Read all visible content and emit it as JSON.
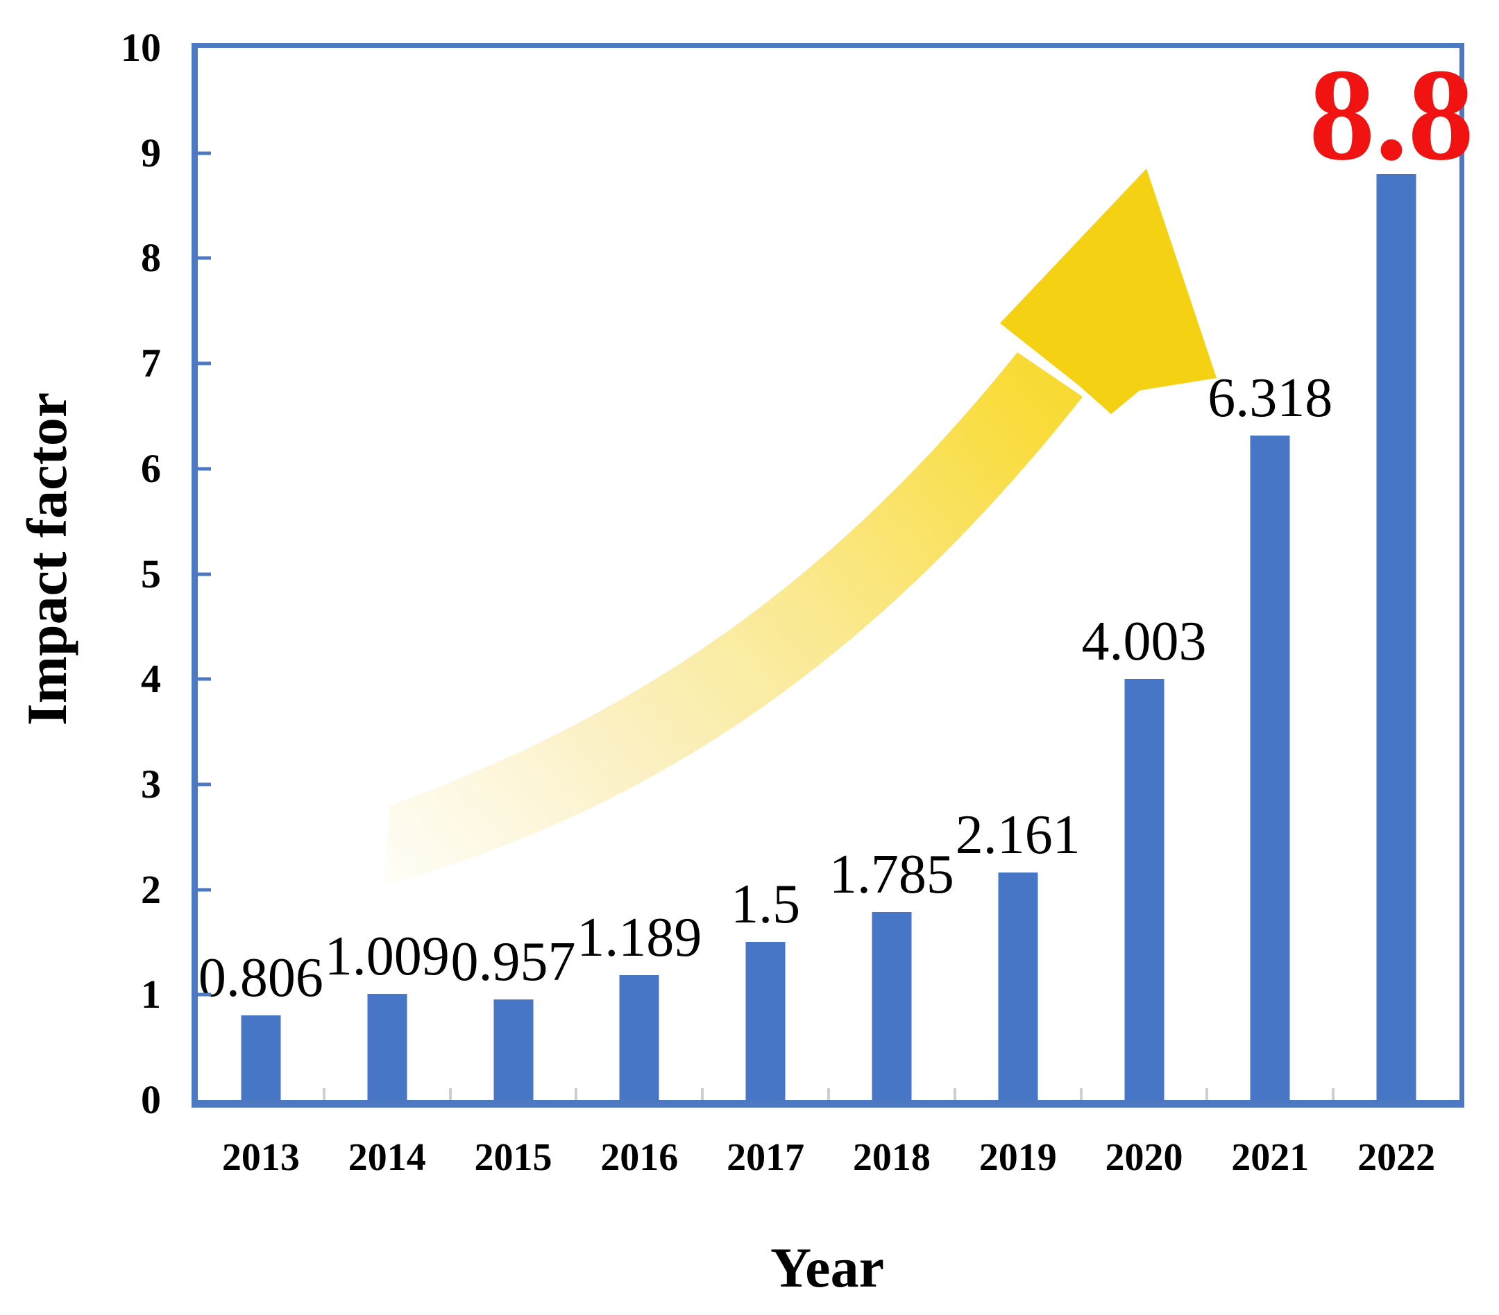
{
  "figure": {
    "background": "#FFFFFF"
  },
  "chart_data": {
    "type": "bar",
    "title": "",
    "categories": [
      "2013",
      "2014",
      "2015",
      "2016",
      "2017",
      "2018",
      "2019",
      "2020",
      "2021",
      "2022"
    ],
    "values": [
      0.806,
      1.009,
      0.957,
      1.189,
      1.5,
      1.785,
      2.161,
      4.003,
      6.318,
      8.8
    ],
    "value_labels": [
      "0.806",
      "1.009",
      "0.957",
      "1.189",
      "1.5",
      "1.785",
      "2.161",
      "4.003",
      "6.318",
      "8.8"
    ],
    "xlabel": "Year",
    "ylabel": "Impact factor",
    "ylim": [
      0,
      10
    ],
    "yticks": [
      0,
      1,
      2,
      3,
      4,
      5,
      6,
      7,
      8,
      9,
      10
    ],
    "grid": false,
    "legend": false,
    "colors": {
      "bar": "#4676C5",
      "axis": "#4C79C2",
      "boundary_tick": "#CFCECE",
      "label_text": "#000000"
    },
    "highlight": {
      "index": 9,
      "value_label": "8.8",
      "color": "#F01311"
    },
    "annotation_arrow": {
      "description": "yellow swoosh arrow curving upward toward the 2022 bar",
      "tail_color": "#FFFDF4",
      "mid_color": "#FAE98F",
      "head_color": "#F5D114"
    }
  }
}
